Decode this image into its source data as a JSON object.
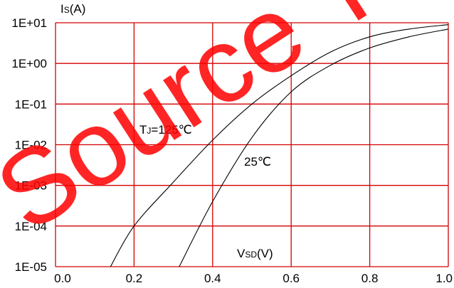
{
  "chart_data": {
    "type": "line",
    "x_axis": {
      "label_main": "V",
      "label_sub": "SD",
      "label_unit": "(V)",
      "range": [
        0.0,
        1.0
      ],
      "ticks": [
        "0.0",
        "0.2",
        "0.4",
        "0.6",
        "0.8",
        "1.0"
      ]
    },
    "y_axis": {
      "label_main": "I",
      "label_sub": "S",
      "label_unit": "(A)",
      "scale": "log",
      "range": [
        1e-05,
        10
      ],
      "ticks": [
        "1E+01",
        "1E+00",
        "1E-01",
        "1E-02",
        "1E-03",
        "1E-04",
        "1E-05"
      ]
    },
    "grid": true,
    "grid_color": "#d40000",
    "series": [
      {
        "label_main": "T",
        "label_sub": "J",
        "label_rest": "=125℃",
        "points": [
          [
            0.14,
            1e-05
          ],
          [
            0.2,
            0.0001
          ],
          [
            0.3,
            0.0012
          ],
          [
            0.4,
            0.013
          ],
          [
            0.5,
            0.1
          ],
          [
            0.6,
            0.5
          ],
          [
            0.7,
            1.9
          ],
          [
            0.8,
            4.5
          ],
          [
            0.9,
            7.0
          ],
          [
            1.0,
            9.0
          ]
        ]
      },
      {
        "label_main": "25℃",
        "points": [
          [
            0.315,
            1e-05
          ],
          [
            0.4,
            0.0004
          ],
          [
            0.5,
            0.015
          ],
          [
            0.6,
            0.2
          ],
          [
            0.7,
            0.9
          ],
          [
            0.8,
            2.4
          ],
          [
            0.9,
            4.5
          ],
          [
            1.0,
            7.0
          ]
        ]
      }
    ],
    "watermark": "Source Tec"
  }
}
